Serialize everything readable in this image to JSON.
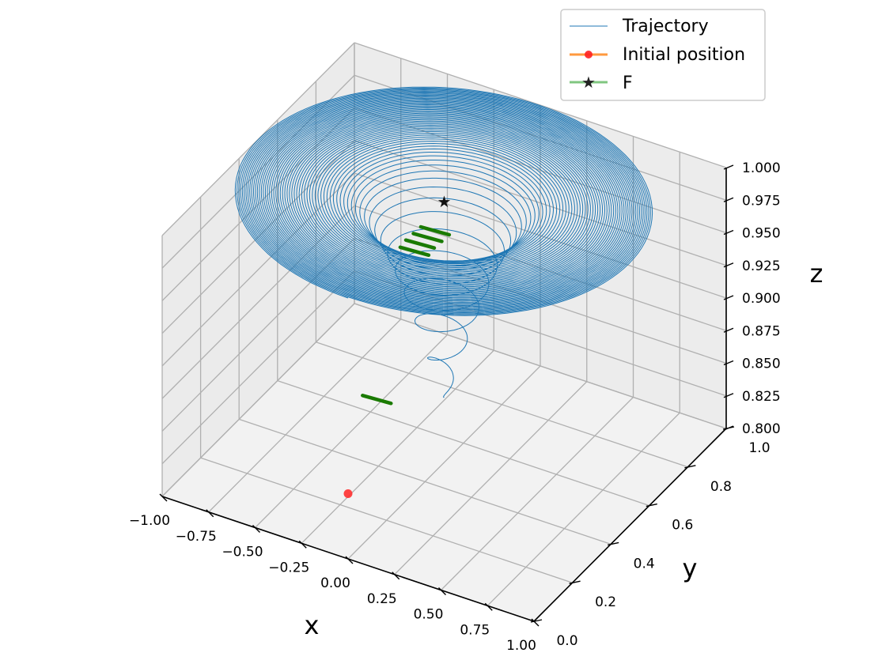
{
  "chart_data": {
    "type": "line3d",
    "title": "",
    "xlabel": "x",
    "ylabel": "y",
    "zlabel": "z",
    "xlim": [
      -1.0,
      1.0
    ],
    "ylim": [
      0.0,
      1.0
    ],
    "zlim": [
      0.8,
      1.0
    ],
    "xticks": [
      "−1.00",
      "−0.75",
      "−0.50",
      "−0.25",
      "0.00",
      "0.25",
      "0.50",
      "0.75",
      "1.00"
    ],
    "yticks": [
      "0.0",
      "0.2",
      "0.4",
      "0.6",
      "0.8",
      "1.0"
    ],
    "zticks": [
      "0.800",
      "0.825",
      "0.850",
      "0.875",
      "0.900",
      "0.925",
      "0.950",
      "0.975",
      "1.000"
    ],
    "grid": true,
    "legend_position": "top-right",
    "colors": {
      "trajectory": "#1f77b4",
      "initial": "#ff3030",
      "initial_line": "#ff7f0e",
      "f": "#2ca02c",
      "arrows": "#1a7a00"
    },
    "series": [
      {
        "name": "Trajectory",
        "kind": "spiral",
        "start": {
          "x": 0.0,
          "y": 0.0,
          "z": 0.85
        },
        "center": {
          "x": 0.0,
          "y": 0.5
        },
        "final_radius": 1.0,
        "final_z": 1.0,
        "turns": 60
      },
      {
        "name": "Initial position",
        "points": [
          {
            "x": 0.0,
            "y": 0.0,
            "z": 0.85
          }
        ]
      },
      {
        "name": "F",
        "points": [
          {
            "x": 0.0,
            "y": 0.5,
            "z": 1.0
          }
        ]
      }
    ],
    "arrows": [
      {
        "x": -0.27,
        "y": 0.73,
        "z": 0.93
      },
      {
        "x": -0.3,
        "y": 0.72,
        "z": 0.925
      },
      {
        "x": -0.33,
        "y": 0.71,
        "z": 0.92
      },
      {
        "x": -0.35,
        "y": 0.7,
        "z": 0.915
      },
      {
        "x": 0.12,
        "y": 0.05,
        "z": 0.92
      }
    ]
  }
}
